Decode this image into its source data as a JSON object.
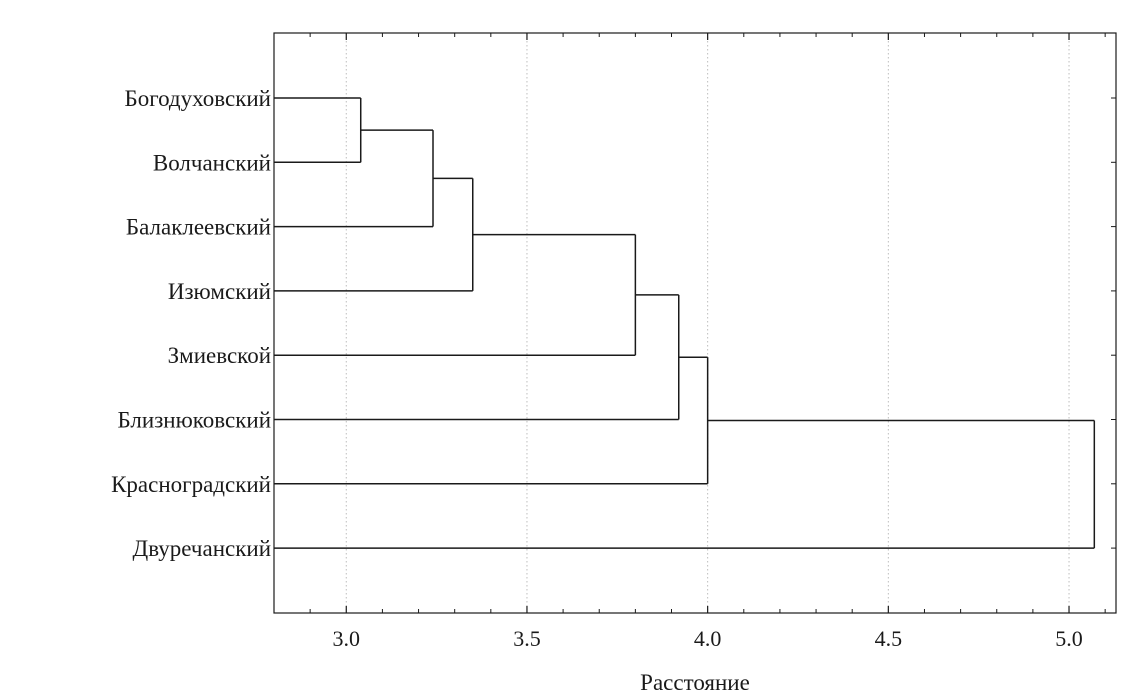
{
  "chart_data": {
    "type": "dendrogram",
    "title": "",
    "xlabel": "Расстояние",
    "ylabel": "",
    "xlim": [
      2.8,
      5.13
    ],
    "xticks": [
      3.0,
      3.5,
      4.0,
      4.5,
      5.0
    ],
    "xtick_labels": [
      "3.0",
      "3.5",
      "4.0",
      "4.5",
      "5.0"
    ],
    "grid": "vertical dotted",
    "leaves": [
      "Богодуховский",
      "Волчанский",
      "Балаклеевский",
      "Изюмский",
      "Змиевской",
      "Близнюковский",
      "Красноградский",
      "Двуречанский"
    ],
    "merges": [
      {
        "left": "Богодуховский",
        "right": "Волчанский",
        "distance": 3.04
      },
      {
        "left": "Богодуховский + Волчанский",
        "right": "Балаклеевский",
        "distance": 3.24
      },
      {
        "left": "Богодуховский + Волчанский + Балаклеевский",
        "right": "Изюмский",
        "distance": 3.35
      },
      {
        "left": "Богодуховский + Волчанский + Балаклеевский + Изюмский",
        "right": "Змиевской",
        "distance": 3.8
      },
      {
        "left": "Богодуховский + Волчанский + Балаклеевский + Изюмский + Змиевской",
        "right": "Близнюковский",
        "distance": 3.92
      },
      {
        "left": "Богодуховский + Волчанский + Балаклеевский + Изюмский + Змиевской + Близнюковский",
        "right": "Красноградский",
        "distance": 4.0
      },
      {
        "left": "Богодуховский + Волчанский + Балаклеевский + Изюмский + Змиевской + Близнюковский + Красноградский",
        "right": "Двуречанский",
        "distance": 5.07
      }
    ],
    "line_color": "#1a1a1a",
    "grid_color": "#bdbdbd"
  }
}
